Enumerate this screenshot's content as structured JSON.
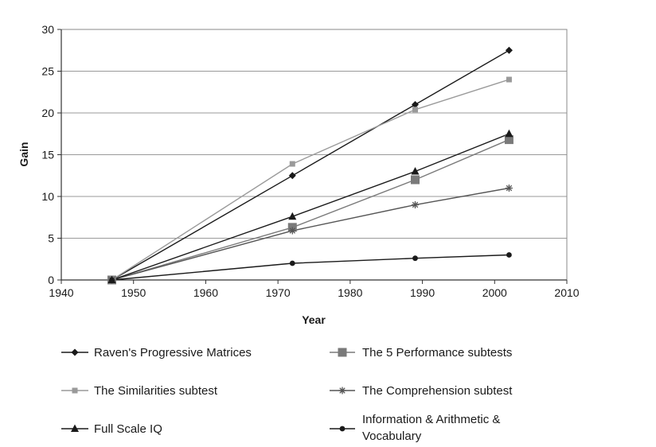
{
  "chart_data": {
    "type": "line",
    "xlabel": "Year",
    "ylabel": "Gain",
    "xlim": [
      1940,
      2010
    ],
    "ylim": [
      0,
      30
    ],
    "x_ticks": [
      "1940",
      "1950",
      "1960",
      "1970",
      "1980",
      "1990",
      "2000",
      "2010"
    ],
    "y_ticks": [
      "0",
      "5",
      "10",
      "15",
      "20",
      "25",
      "30"
    ],
    "grid": "horizontal",
    "legend_position": "bottom",
    "series": [
      {
        "name": "Raven's Progressive Matrices",
        "marker": "diamond",
        "color": "#1a1a1a",
        "points": [
          [
            1947,
            0
          ],
          [
            1972,
            12.5
          ],
          [
            1989,
            21
          ],
          [
            2002,
            27.5
          ]
        ]
      },
      {
        "name": "The 5 Performance subtests",
        "marker": "square-large",
        "color": "#7a7a7a",
        "points": [
          [
            1947,
            0
          ],
          [
            1972,
            6.3
          ],
          [
            1989,
            12
          ],
          [
            2002,
            16.8
          ]
        ]
      },
      {
        "name": "The Similarities subtest",
        "marker": "square-small",
        "color": "#9a9a9a",
        "points": [
          [
            1947,
            0
          ],
          [
            1972,
            13.9
          ],
          [
            1989,
            20.4
          ],
          [
            2002,
            24
          ]
        ]
      },
      {
        "name": "The Comprehension subtest",
        "marker": "asterisk",
        "color": "#555555",
        "points": [
          [
            1947,
            0
          ],
          [
            1972,
            5.9
          ],
          [
            1989,
            9
          ],
          [
            2002,
            11
          ]
        ]
      },
      {
        "name": "Full Scale IQ",
        "marker": "triangle",
        "color": "#1a1a1a",
        "points": [
          [
            1947,
            0
          ],
          [
            1972,
            7.6
          ],
          [
            1989,
            13
          ],
          [
            2002,
            17.5
          ]
        ]
      },
      {
        "name": "Information & Arithmetic & Vocabulary",
        "marker": "circle",
        "color": "#1a1a1a",
        "points": [
          [
            1947,
            0
          ],
          [
            1972,
            2
          ],
          [
            1989,
            2.6
          ],
          [
            2002,
            3
          ]
        ]
      }
    ],
    "legend_rows": [
      [
        "Raven's Progressive Matrices"
      ],
      [
        "The 5 Performance subtests"
      ],
      [
        "The Similarities subtest"
      ],
      [
        "The Comprehension subtest"
      ],
      [
        "Full Scale IQ"
      ],
      [
        "Information & Arithmetic &",
        "Vocabulary"
      ]
    ]
  }
}
